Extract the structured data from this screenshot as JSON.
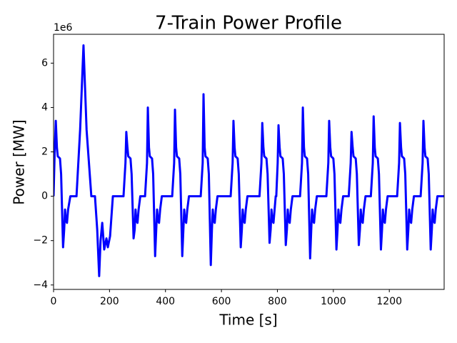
{
  "chart_data": {
    "type": "line",
    "title": "7-Train Power Profile",
    "xlabel": "Time [s]",
    "ylabel": "Power [MW]",
    "y_offset_label": "1e6",
    "color": "#0000ff",
    "xlim": [
      0,
      1396
    ],
    "ylim": [
      -4.2,
      7.3
    ],
    "xticks": [
      0,
      200,
      400,
      600,
      800,
      1000,
      1200
    ],
    "yticks": [
      {
        "value": -4,
        "label": "−4"
      },
      {
        "value": -2,
        "label": "−2"
      },
      0,
      2,
      4,
      6
    ],
    "x": [
      0,
      4,
      8,
      12,
      15,
      23,
      27,
      34,
      38,
      41,
      44,
      48,
      52,
      60,
      82,
      95,
      107,
      118,
      135,
      148,
      156,
      163,
      168,
      174,
      181,
      189,
      194,
      202,
      212,
      250,
      257,
      260,
      264,
      267,
      275,
      279,
      286,
      290,
      293,
      296,
      300,
      304,
      310,
      327,
      334,
      337,
      341,
      344,
      352,
      356,
      363,
      367,
      370,
      373,
      377,
      381,
      387,
      424,
      431,
      434,
      438,
      441,
      449,
      453,
      460,
      464,
      467,
      470,
      474,
      478,
      484,
      526,
      533,
      536,
      540,
      543,
      551,
      555,
      562,
      566,
      569,
      572,
      576,
      580,
      586,
      633,
      640,
      643,
      647,
      650,
      658,
      662,
      669,
      673,
      676,
      679,
      683,
      687,
      693,
      736,
      743,
      746,
      750,
      753,
      761,
      765,
      772,
      776,
      779,
      782,
      786,
      790,
      794,
      796,
      801,
      804,
      808,
      811,
      819,
      823,
      830,
      834,
      837,
      840,
      844,
      848,
      854,
      881,
      888,
      891,
      895,
      898,
      906,
      910,
      917,
      921,
      924,
      927,
      931,
      935,
      941,
      975,
      982,
      985,
      989,
      992,
      1000,
      1004,
      1011,
      1015,
      1018,
      1021,
      1025,
      1029,
      1035,
      1055,
      1062,
      1065,
      1069,
      1072,
      1080,
      1084,
      1091,
      1095,
      1098,
      1101,
      1105,
      1109,
      1115,
      1134,
      1141,
      1144,
      1148,
      1151,
      1159,
      1163,
      1170,
      1174,
      1177,
      1180,
      1184,
      1188,
      1194,
      1228,
      1235,
      1238,
      1242,
      1245,
      1253,
      1257,
      1264,
      1268,
      1271,
      1274,
      1278,
      1282,
      1288,
      1312,
      1319,
      1322,
      1326,
      1329,
      1337,
      1341,
      1348,
      1352,
      1355,
      1358,
      1362,
      1366,
      1372,
      1396
    ],
    "values": [
      0,
      2.0,
      3.4,
      2.2,
      1.8,
      1.7,
      1.0,
      -2.3,
      -1.5,
      -0.6,
      -1.1,
      -1.2,
      -0.6,
      0,
      0,
      3.0,
      6.8,
      3.0,
      0,
      0,
      -1.5,
      -3.6,
      -2.0,
      -1.2,
      -2.4,
      -1.9,
      -2.3,
      -1.8,
      0,
      0,
      1.5,
      2.9,
      2.2,
      1.8,
      1.7,
      1.0,
      -1.9,
      -1.5,
      -0.6,
      -1.1,
      -1.2,
      -0.6,
      0,
      0,
      1.5,
      4.0,
      2.2,
      1.8,
      1.7,
      1.0,
      -2.7,
      -1.5,
      -0.6,
      -1.1,
      -1.2,
      -0.6,
      0,
      0,
      1.5,
      3.9,
      2.2,
      1.8,
      1.7,
      1.0,
      -2.7,
      -1.5,
      -0.6,
      -1.1,
      -1.2,
      -0.6,
      0,
      0,
      1.5,
      4.6,
      2.2,
      1.8,
      1.7,
      1.0,
      -3.1,
      -1.5,
      -0.6,
      -1.1,
      -1.2,
      -0.6,
      0,
      0,
      1.5,
      3.4,
      2.2,
      1.8,
      1.7,
      1.0,
      -2.3,
      -1.5,
      -0.6,
      -1.1,
      -1.2,
      -0.6,
      0,
      0,
      1.5,
      3.3,
      2.2,
      1.8,
      1.7,
      1.0,
      -2.1,
      -1.5,
      -0.6,
      -1.1,
      -1.2,
      -0.6,
      0,
      0,
      1.5,
      3.2,
      2.2,
      1.8,
      1.7,
      1.0,
      -2.2,
      -1.5,
      -0.6,
      -1.1,
      -1.2,
      -0.6,
      0,
      0,
      1.5,
      4.0,
      2.2,
      1.8,
      1.7,
      1.0,
      -2.8,
      -1.5,
      -0.6,
      -1.1,
      -1.2,
      -0.6,
      0,
      0,
      1.5,
      3.4,
      2.2,
      1.8,
      1.7,
      1.0,
      -2.4,
      -1.5,
      -0.6,
      -1.1,
      -1.2,
      -0.6,
      0,
      0,
      1.5,
      2.9,
      2.2,
      1.8,
      1.7,
      1.0,
      -2.2,
      -1.5,
      -0.6,
      -1.1,
      -1.2,
      -0.6,
      0,
      0,
      1.5,
      3.6,
      2.2,
      1.8,
      1.7,
      1.0,
      -2.4,
      -1.5,
      -0.6,
      -1.1,
      -1.2,
      -0.6,
      0,
      0,
      1.5,
      3.3,
      2.2,
      1.8,
      1.7,
      1.0,
      -2.4,
      -1.5,
      -0.6,
      -1.1,
      -1.2,
      -0.6,
      0,
      0,
      1.5,
      3.4,
      2.2,
      1.8,
      1.7,
      1.0,
      -2.4,
      -1.5,
      -0.6,
      -1.1,
      -1.2,
      -0.6,
      0,
      0
    ]
  }
}
